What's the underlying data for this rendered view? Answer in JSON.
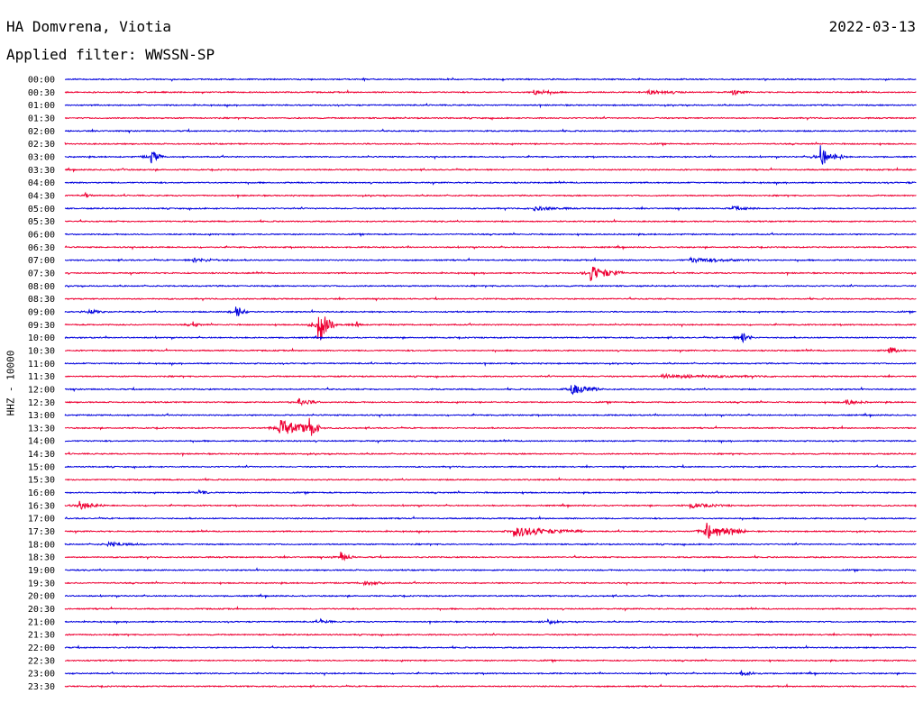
{
  "header": {
    "station": "HA Domvrena, Viotia",
    "date": "2022-03-13",
    "filter": "Applied filter: WWSSN-SP"
  },
  "chart_data": {
    "type": "line",
    "title": "HA Domvrena, Viotia",
    "subtitle": "Applied filter: WWSSN-SP",
    "ylabel": "HHZ - 10000",
    "colors": [
      "#0000dd",
      "#ee0033"
    ],
    "row_labels": [
      "00:00",
      "00:30",
      "01:00",
      "01:30",
      "02:00",
      "02:30",
      "03:00",
      "03:30",
      "04:00",
      "04:30",
      "05:00",
      "05:30",
      "06:00",
      "06:30",
      "07:00",
      "07:30",
      "08:00",
      "08:30",
      "09:00",
      "09:30",
      "10:00",
      "10:30",
      "11:00",
      "11:30",
      "12:00",
      "12:30",
      "13:00",
      "13:30",
      "14:00",
      "14:30",
      "15:00",
      "15:30",
      "16:00",
      "16:30",
      "17:00",
      "17:30",
      "18:00",
      "18:30",
      "19:00",
      "19:30",
      "20:00",
      "20:30",
      "21:00",
      "21:30",
      "22:00",
      "22:30",
      "23:00",
      "23:30"
    ],
    "events": [
      {
        "row": 1,
        "minute": 16.5,
        "amp": 3,
        "dur": 1.0
      },
      {
        "row": 1,
        "minute": 20.5,
        "amp": 2.5,
        "dur": 1.5
      },
      {
        "row": 1,
        "minute": 23.5,
        "amp": 2.5,
        "dur": 0.6
      },
      {
        "row": 6,
        "minute": 3.0,
        "amp": 8,
        "dur": 0.5
      },
      {
        "row": 6,
        "minute": 26.6,
        "amp": 14,
        "dur": 0.6
      },
      {
        "row": 6,
        "minute": 27.3,
        "amp": 3,
        "dur": 0.3
      },
      {
        "row": 7,
        "minute": 2.0,
        "amp": 2,
        "dur": 0.2
      },
      {
        "row": 7,
        "minute": 30.0,
        "amp": 5,
        "dur": 0.5
      },
      {
        "row": 8,
        "minute": 30.0,
        "amp": 3,
        "dur": 0.8
      },
      {
        "row": 9,
        "minute": 0.7,
        "amp": 3,
        "dur": 0.3
      },
      {
        "row": 10,
        "minute": 16.5,
        "amp": 2,
        "dur": 1.5
      },
      {
        "row": 10,
        "minute": 23.5,
        "amp": 2,
        "dur": 1.0
      },
      {
        "row": 14,
        "minute": 4.5,
        "amp": 2,
        "dur": 1.5
      },
      {
        "row": 14,
        "minute": 22.0,
        "amp": 2.5,
        "dur": 2.5
      },
      {
        "row": 15,
        "minute": 18.5,
        "amp": 9,
        "dur": 1.2
      },
      {
        "row": 18,
        "minute": 0.8,
        "amp": 2.5,
        "dur": 0.8
      },
      {
        "row": 18,
        "minute": 6.0,
        "amp": 8,
        "dur": 0.5
      },
      {
        "row": 19,
        "minute": 4.5,
        "amp": 4,
        "dur": 0.3
      },
      {
        "row": 19,
        "minute": 8.9,
        "amp": 25,
        "dur": 0.6
      },
      {
        "row": 19,
        "minute": 10.2,
        "amp": 6,
        "dur": 0.3
      },
      {
        "row": 20,
        "minute": 23.8,
        "amp": 7,
        "dur": 0.5
      },
      {
        "row": 21,
        "minute": 29.0,
        "amp": 4,
        "dur": 0.6
      },
      {
        "row": 23,
        "minute": 21.0,
        "amp": 2,
        "dur": 4.0
      },
      {
        "row": 24,
        "minute": 17.8,
        "amp": 6,
        "dur": 1.2
      },
      {
        "row": 25,
        "minute": 8.2,
        "amp": 4,
        "dur": 0.8
      },
      {
        "row": 25,
        "minute": 27.5,
        "amp": 3,
        "dur": 0.8
      },
      {
        "row": 27,
        "minute": 7.5,
        "amp": 10,
        "dur": 1.5
      },
      {
        "row": 27,
        "minute": 8.6,
        "amp": 12,
        "dur": 0.4
      },
      {
        "row": 32,
        "minute": 4.7,
        "amp": 4,
        "dur": 0.4
      },
      {
        "row": 33,
        "minute": 0.5,
        "amp": 5,
        "dur": 0.9
      },
      {
        "row": 33,
        "minute": 22.0,
        "amp": 2.5,
        "dur": 1.5
      },
      {
        "row": 35,
        "minute": 15.8,
        "amp": 6,
        "dur": 2.5
      },
      {
        "row": 35,
        "minute": 22.5,
        "amp": 11,
        "dur": 1.5
      },
      {
        "row": 36,
        "minute": 1.5,
        "amp": 2,
        "dur": 1.5
      },
      {
        "row": 37,
        "minute": 9.7,
        "amp": 6,
        "dur": 0.5
      },
      {
        "row": 39,
        "minute": 10.5,
        "amp": 2.5,
        "dur": 1.0
      },
      {
        "row": 42,
        "minute": 9.0,
        "amp": 3,
        "dur": 0.5
      },
      {
        "row": 42,
        "minute": 17.0,
        "amp": 3,
        "dur": 0.4
      },
      {
        "row": 46,
        "minute": 23.8,
        "amp": 2.5,
        "dur": 0.8
      }
    ]
  }
}
